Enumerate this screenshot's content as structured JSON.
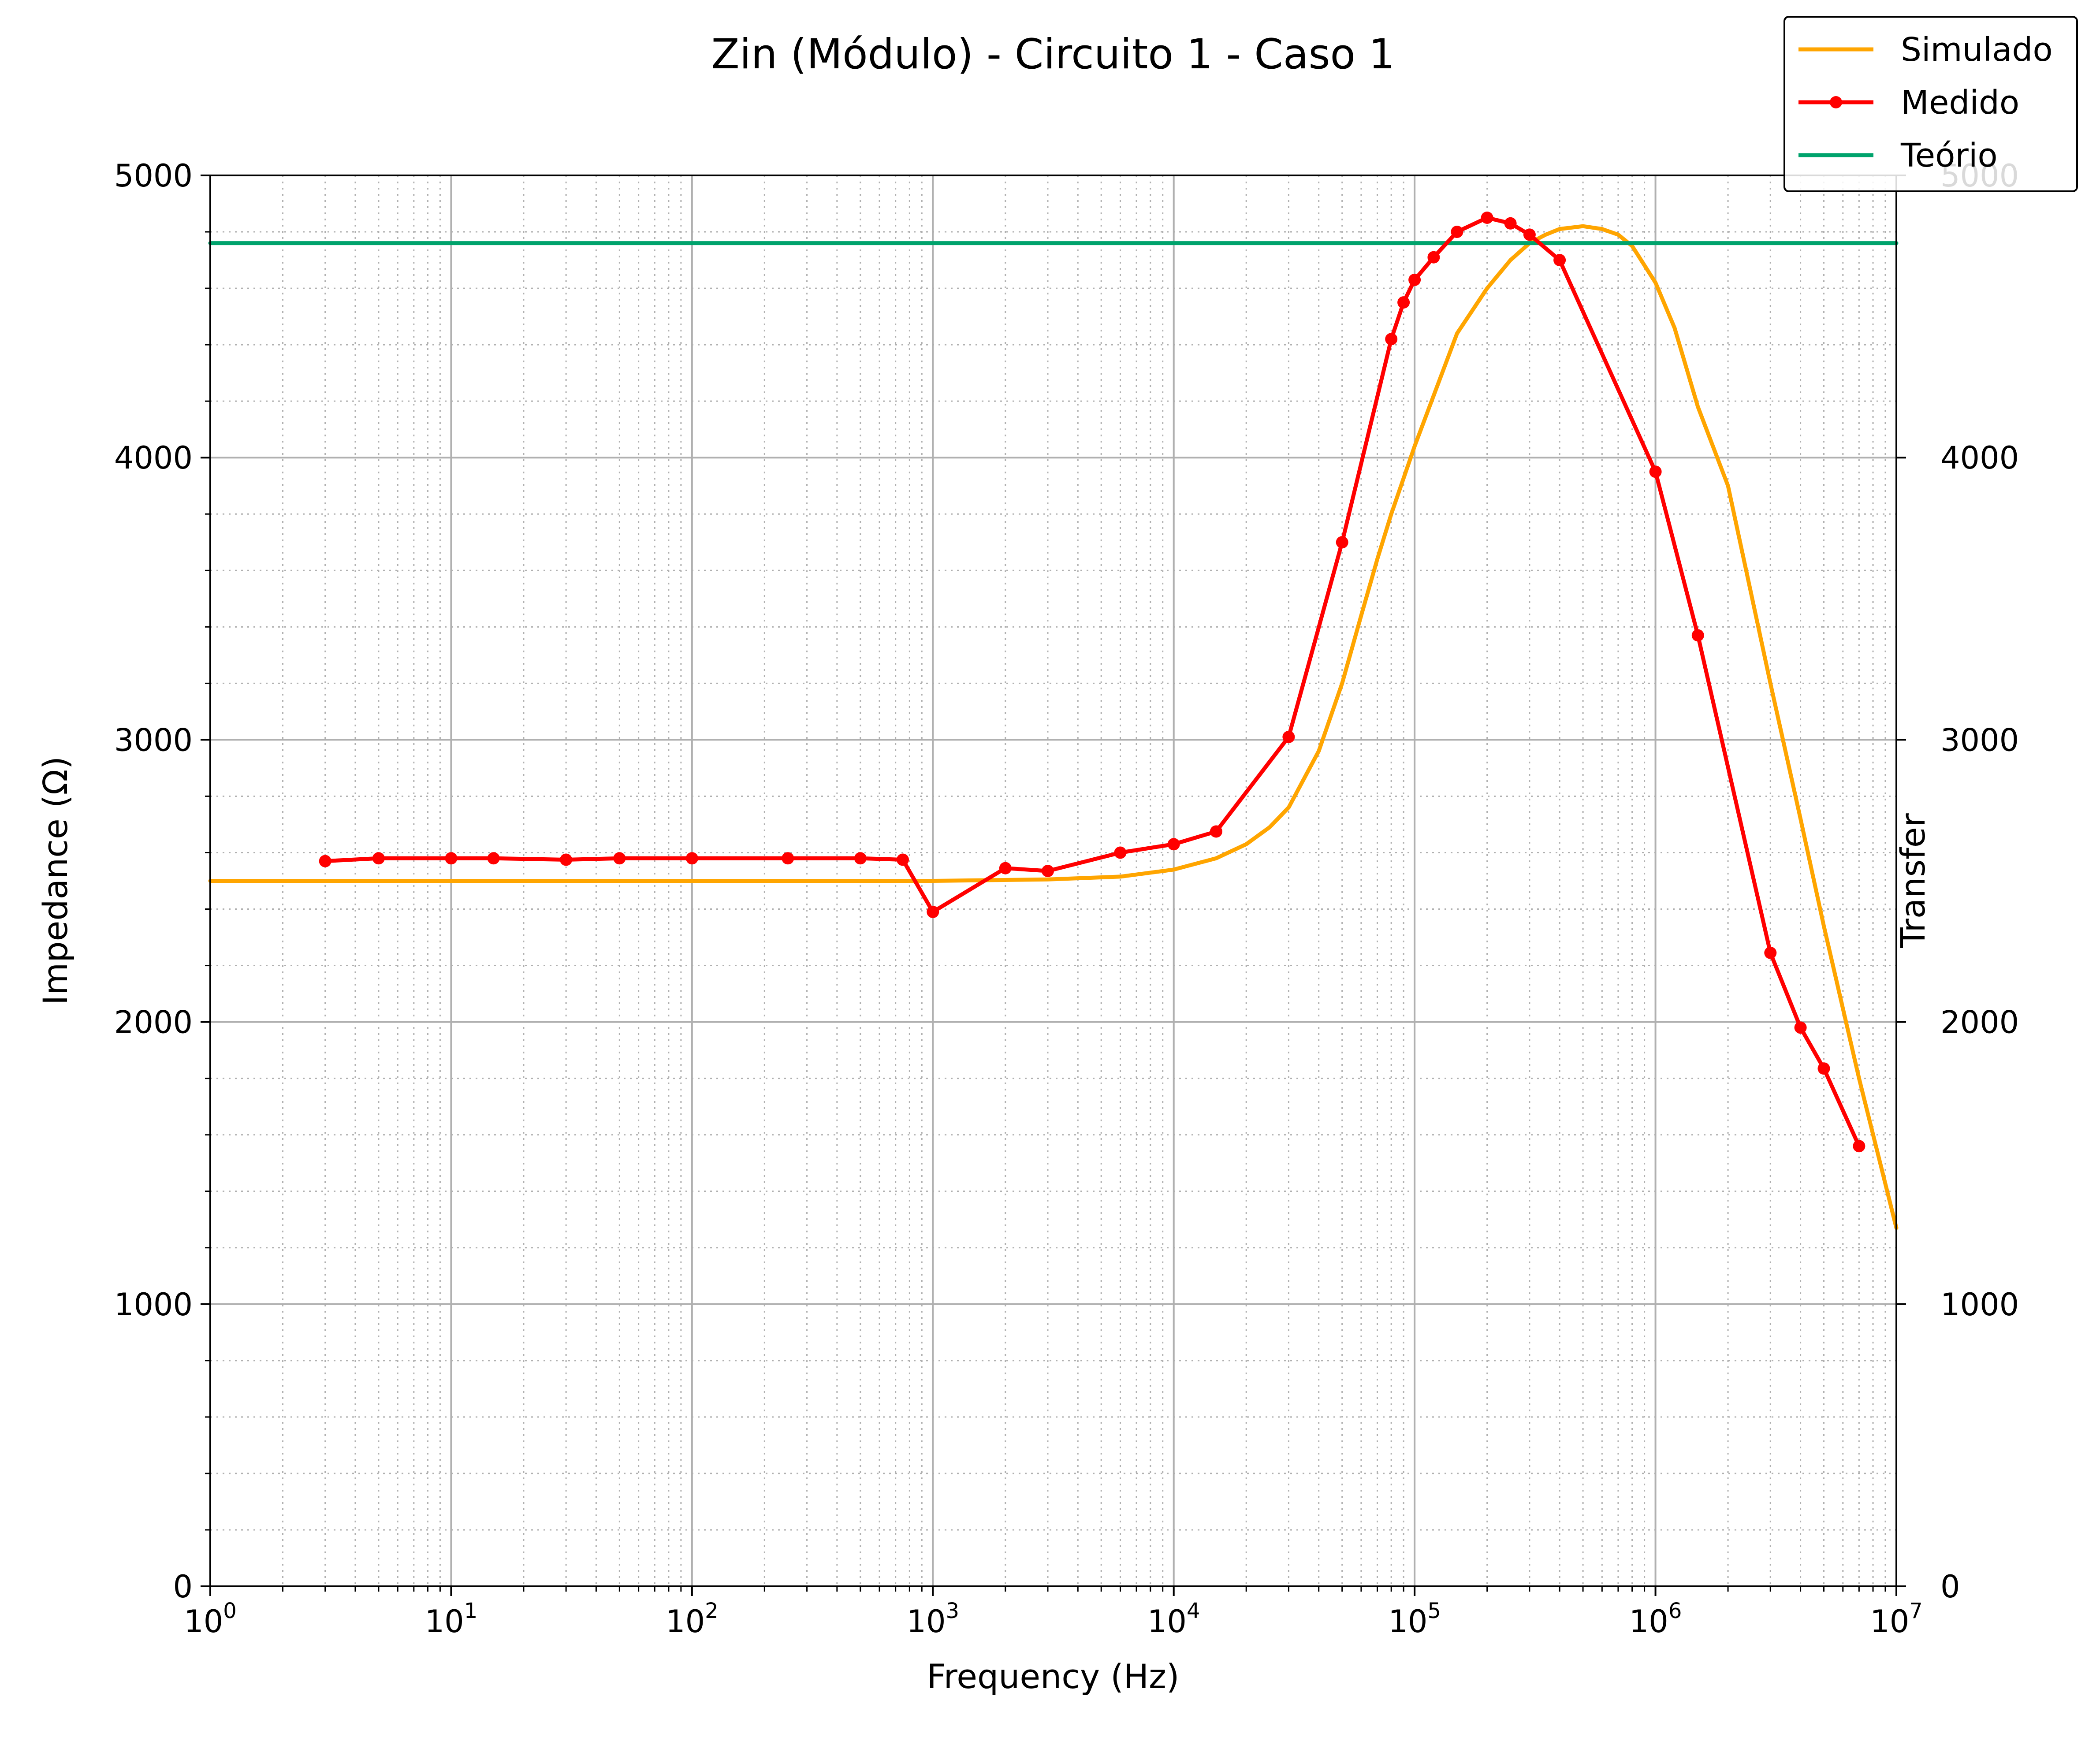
{
  "chart_data": {
    "type": "line",
    "title": "Zin (Módulo) - Circuito 1 - Caso 1",
    "xlabel": "Frequency (Hz)",
    "ylabel": "Impedance (Ω)",
    "y2label": "Transfer",
    "xscale": "log",
    "xlim": [
      1,
      10000000
    ],
    "ylim": [
      0,
      5000
    ],
    "y2lim": [
      0,
      5000
    ],
    "grid": true,
    "legend_position": "top-right",
    "x_ticks": [
      {
        "base": "10",
        "exp": "0"
      },
      {
        "base": "10",
        "exp": "1"
      },
      {
        "base": "10",
        "exp": "2"
      },
      {
        "base": "10",
        "exp": "3"
      },
      {
        "base": "10",
        "exp": "4"
      },
      {
        "base": "10",
        "exp": "5"
      },
      {
        "base": "10",
        "exp": "6"
      },
      {
        "base": "10",
        "exp": "7"
      }
    ],
    "y_ticks": [
      "0",
      "1000",
      "2000",
      "3000",
      "4000",
      "5000"
    ],
    "y2_ticks": [
      "0",
      "1000",
      "2000",
      "3000",
      "4000",
      "5000"
    ],
    "series": [
      {
        "name": "Simulado",
        "color": "#FFA500",
        "markers": false,
        "x": [
          1,
          10,
          100,
          1000,
          3000,
          6000,
          10000,
          15000,
          20000,
          25000,
          30000,
          40000,
          50000,
          60000,
          70000,
          80000,
          100000,
          120000,
          150000,
          200000,
          250000,
          300000,
          350000,
          400000,
          500000,
          600000,
          700000,
          800000,
          1000000,
          1200000,
          1500000,
          2000000,
          3000000,
          4000000,
          5000000,
          7000000,
          10000000
        ],
        "y": [
          2500,
          2500,
          2500,
          2500,
          2505,
          2515,
          2540,
          2580,
          2630,
          2690,
          2760,
          2960,
          3200,
          3440,
          3640,
          3800,
          4040,
          4220,
          4440,
          4600,
          4700,
          4760,
          4790,
          4810,
          4820,
          4810,
          4790,
          4750,
          4620,
          4460,
          4180,
          3900,
          3200,
          2720,
          2340,
          1800,
          1270
        ]
      },
      {
        "name": "Medido",
        "color": "#FF0000",
        "markers": true,
        "x": [
          3,
          5,
          10,
          15,
          30,
          50,
          100,
          250,
          500,
          750,
          1000,
          2000,
          3000,
          6000,
          10000,
          15000,
          30000,
          50000,
          80000,
          90000,
          100000,
          120000,
          150000,
          200000,
          250000,
          300000,
          400000,
          1000000,
          1500000,
          3000000,
          4000000,
          5000000,
          7000000
        ],
        "y": [
          2570,
          2580,
          2580,
          2580,
          2575,
          2580,
          2580,
          2580,
          2580,
          2575,
          2390,
          2545,
          2535,
          2600,
          2630,
          2675,
          3010,
          3700,
          4420,
          4550,
          4630,
          4710,
          4800,
          4850,
          4830,
          4790,
          4700,
          3950,
          3370,
          2245,
          1980,
          1835,
          1560
        ]
      },
      {
        "name": "Teório",
        "color": "#00A36C",
        "markers": false,
        "x": [
          1,
          10000000
        ],
        "y": [
          4760,
          4760
        ]
      }
    ]
  }
}
